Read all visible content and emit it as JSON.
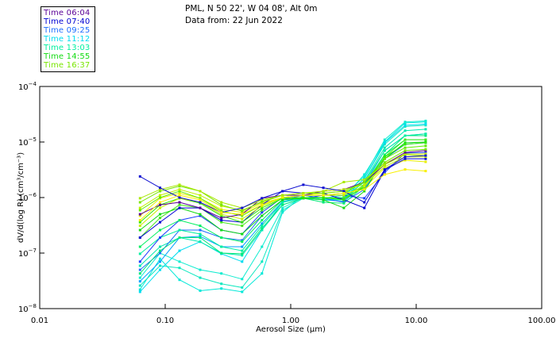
{
  "header": {
    "station": "PML, N 50 22', W 04 08', Alt 0m",
    "date_line": "Data from: 22 Jun 2022"
  },
  "legend": [
    {
      "label": "Time 06:04",
      "color": "#5a0096"
    },
    {
      "label": "Time 07:40",
      "color": "#0000d2"
    },
    {
      "label": "Time 09:25",
      "color": "#1e6eff"
    },
    {
      "label": "Time 11:12",
      "color": "#00dcf0"
    },
    {
      "label": "Time 13:03",
      "color": "#00f0a0"
    },
    {
      "label": "Time 14:55",
      "color": "#14dc14"
    },
    {
      "label": "Time 16:37",
      "color": "#78e600"
    }
  ],
  "chart_data": {
    "type": "line",
    "xscale": "log",
    "yscale": "log",
    "xlim": [
      0.01,
      100
    ],
    "ylim": [
      1e-08,
      0.0001
    ],
    "xlabel": "Aerosol Size (μm)",
    "ylabel": "dV/d(log R) (cm³/cm⁻³)",
    "xticks": [
      {
        "value": 0.01,
        "label": "0.01"
      },
      {
        "value": 0.1,
        "label": "0.10"
      },
      {
        "value": 1,
        "label": "1.00"
      },
      {
        "value": 10,
        "label": "10.00"
      },
      {
        "value": 100,
        "label": "100.00"
      }
    ],
    "yticks": [
      {
        "value": 0.0001,
        "base": "10",
        "exp": "−4"
      },
      {
        "value": 1e-05,
        "base": "10",
        "exp": "−5"
      },
      {
        "value": 1e-06,
        "base": "10",
        "exp": "−6"
      },
      {
        "value": 1e-07,
        "base": "10",
        "exp": "−7"
      },
      {
        "value": 1e-08,
        "base": "10",
        "exp": "−8"
      }
    ],
    "x": [
      0.063,
      0.091,
      0.13,
      0.19,
      0.28,
      0.41,
      0.59,
      0.86,
      1.26,
      1.82,
      2.65,
      3.86,
      5.61,
      8.16,
      11.9
    ],
    "series": [
      {
        "color": "#e8f000",
        "values": [
          4.7e-07,
          9.7e-07,
          1.2e-06,
          9.7e-07,
          6.1e-07,
          5.4e-07,
          7.9e-07,
          1e-06,
          1.1e-06,
          1.2e-06,
          1.3e-06,
          1.5e-06,
          3.4e-06,
          4.7e-06,
          4.4e-06
        ]
      },
      {
        "color": "#00e8d8",
        "values": [
          2.2e-08,
          7.9e-08,
          3.3e-08,
          2.1e-08,
          2.3e-08,
          2e-08,
          4.3e-08,
          5.4e-07,
          1.1e-06,
          9.7e-07,
          1e-06,
          2.6e-06,
          1e-05,
          2.2e-05,
          2.3e-05
        ]
      },
      {
        "color": "#10ecd0",
        "values": [
          3.6e-08,
          1e-07,
          7e-08,
          5e-08,
          4.3e-08,
          3.4e-08,
          1.3e-07,
          6.5e-07,
          1e-06,
          9.7e-07,
          1.1e-06,
          2.4e-06,
          1.1e-05,
          2.3e-05,
          2.4e-05
        ]
      },
      {
        "color": "#10e8c0",
        "values": [
          2.6e-08,
          5.9e-08,
          5.4e-08,
          3.6e-08,
          2.8e-08,
          2.4e-08,
          7e-08,
          5.9e-07,
          9.7e-07,
          9.1e-07,
          9.7e-07,
          2.2e-06,
          9.1e-06,
          1.9e-05,
          2e-05
        ]
      },
      {
        "color": "#00dcf0",
        "values": [
          2e-08,
          5e-08,
          1.1e-07,
          1.6e-07,
          9.7e-08,
          7e-08,
          2.6e-07,
          8.2e-07,
          9.7e-07,
          9.1e-07,
          9.7e-07,
          2.2e-06,
          9.7e-06,
          2e-05,
          2.1e-05
        ]
      },
      {
        "color": "#00a0ff",
        "values": [
          3.1e-08,
          7e-08,
          1.9e-07,
          2e-07,
          1.3e-07,
          1.3e-07,
          3.4e-07,
          8.5e-07,
          1e-06,
          9.1e-07,
          8.5e-07,
          1.7e-06,
          7e-06,
          1.3e-05,
          1.4e-05
        ]
      },
      {
        "color": "#00e8b0",
        "values": [
          5.9e-08,
          1.3e-07,
          1.9e-07,
          1.6e-07,
          1e-07,
          9.1e-08,
          2.6e-07,
          7.4e-07,
          9.7e-07,
          9.1e-07,
          9.1e-07,
          2e-06,
          7.9e-06,
          1.6e-05,
          1.7e-05
        ]
      },
      {
        "color": "#1e6eff",
        "values": [
          5e-08,
          1e-07,
          2.6e-07,
          2.6e-07,
          1.9e-07,
          1.7e-07,
          4.7e-07,
          9.1e-07,
          1.1e-06,
          9.7e-07,
          8.2e-07,
          1.4e-06,
          5e-06,
          9.1e-06,
          9.7e-06
        ]
      },
      {
        "color": "#00e878",
        "values": [
          4.3e-08,
          1.1e-07,
          1.9e-07,
          1.9e-07,
          1e-07,
          9.7e-08,
          2.8e-07,
          7.4e-07,
          9.7e-07,
          8.2e-07,
          7.9e-07,
          1.6e-06,
          5.9e-06,
          1.3e-05,
          1.3e-05
        ]
      },
      {
        "color": "#00f0a0",
        "values": [
          9.7e-08,
          1.9e-07,
          2.6e-07,
          2.2e-07,
          1.3e-07,
          1.1e-07,
          3.1e-07,
          8.2e-07,
          1e-06,
          9.7e-07,
          1e-06,
          1.9e-06,
          7e-06,
          1.3e-05,
          1.4e-05
        ]
      },
      {
        "color": "#1a3cff",
        "values": [
          7e-08,
          1.9e-07,
          3.9e-07,
          4.7e-07,
          2.6e-07,
          2.2e-07,
          5.4e-07,
          1e-06,
          9.7e-07,
          1.1e-06,
          1.1e-06,
          9.7e-07,
          2.8e-06,
          6.3e-06,
          6.5e-06
        ]
      },
      {
        "color": "#00f060",
        "values": [
          1.3e-07,
          2.6e-07,
          3.9e-07,
          3.1e-07,
          1.9e-07,
          1.6e-07,
          3.9e-07,
          9.1e-07,
          1e-06,
          9.7e-07,
          9.7e-07,
          1.7e-06,
          5.9e-06,
          1.1e-05,
          1.1e-05
        ]
      },
      {
        "color": "#48e820",
        "values": [
          1.9e-07,
          4.3e-07,
          7.4e-07,
          6.5e-07,
          3.6e-07,
          3.1e-07,
          5.9e-07,
          9.7e-07,
          1e-06,
          1e-06,
          9.7e-07,
          1.5e-06,
          5.4e-06,
          1.1e-05,
          1.1e-05
        ]
      },
      {
        "color": "#14dc14",
        "values": [
          2.6e-07,
          5e-07,
          6.5e-07,
          5e-07,
          2.6e-07,
          2.2e-07,
          4.7e-07,
          9.1e-07,
          9.7e-07,
          9.1e-07,
          6.5e-07,
          1.3e-06,
          5e-06,
          9.7e-06,
          1e-05
        ]
      },
      {
        "color": "#0000d2",
        "values": [
          1.9e-07,
          3.6e-07,
          6.5e-07,
          6.5e-07,
          3.9e-07,
          3.6e-07,
          7.4e-07,
          1.3e-06,
          1.2e-06,
          1.2e-06,
          9.1e-07,
          6.5e-07,
          3.1e-06,
          5e-06,
          5e-06
        ]
      },
      {
        "color": "#30e800",
        "values": [
          3.6e-07,
          7.4e-07,
          9.7e-07,
          7.9e-07,
          4.7e-07,
          3.6e-07,
          6.5e-07,
          9.7e-07,
          1e-06,
          1e-06,
          9.1e-07,
          1.6e-06,
          5.4e-06,
          9.1e-06,
          9.7e-06
        ]
      },
      {
        "color": "#c8f000",
        "values": [
          3.1e-07,
          6.5e-07,
          9.7e-07,
          8.2e-07,
          5e-07,
          4.1e-07,
          7e-07,
          1e-06,
          1.1e-06,
          1.1e-06,
          1.1e-06,
          1.6e-06,
          4.1e-06,
          6.1e-06,
          6.1e-06
        ]
      },
      {
        "color": "#60ec00",
        "values": [
          5.9e-07,
          1e-06,
          1.3e-06,
          9.7e-07,
          5.7e-07,
          4.7e-07,
          7.4e-07,
          1e-06,
          1.1e-06,
          1.1e-06,
          1.2e-06,
          1.9e-06,
          5e-06,
          7.9e-06,
          8.5e-06
        ]
      },
      {
        "color": "#5a0096",
        "values": [
          5e-07,
          7.4e-07,
          8.2e-07,
          6.5e-07,
          4.3e-07,
          5e-07,
          9.7e-07,
          1.1e-06,
          1.1e-06,
          1.3e-06,
          1.4e-06,
          1.9e-06,
          3.9e-06,
          6.5e-06,
          7e-06
        ]
      },
      {
        "color": "#c0f000",
        "values": [
          6.5e-07,
          1.1e-06,
          1.4e-06,
          1.1e-06,
          7e-07,
          5.9e-07,
          8.2e-07,
          1.1e-06,
          1.2e-06,
          1.3e-06,
          1.4e-06,
          1.7e-06,
          3.6e-06,
          5.4e-06,
          5.4e-06
        ]
      },
      {
        "color": "#78e600",
        "values": [
          8.2e-07,
          1.3e-06,
          1.6e-06,
          1.3e-06,
          7.4e-07,
          5.7e-07,
          8.5e-07,
          1.1e-06,
          1.2e-06,
          1.2e-06,
          1.3e-06,
          1.9e-06,
          4.3e-06,
          7e-06,
          7.4e-06
        ]
      },
      {
        "color": "#a8e800",
        "values": [
          9.7e-07,
          1.4e-06,
          1.7e-06,
          1.3e-06,
          8.2e-07,
          6.5e-07,
          9.1e-07,
          1.1e-06,
          1.2e-06,
          1.3e-06,
          1.9e-06,
          2.1e-06,
          3.9e-06,
          5.9e-06,
          5.7e-06
        ]
      },
      {
        "color": "#1010d0",
        "values": [
          2.4e-06,
          1.5e-06,
          1e-06,
          8.2e-07,
          5.4e-07,
          6.5e-07,
          9.7e-07,
          1.3e-06,
          1.7e-06,
          1.5e-06,
          1.3e-06,
          8.2e-07,
          3.2e-06,
          5.4e-06,
          5.7e-06
        ]
      },
      {
        "color": "#f8f000",
        "values": [
          3.9e-07,
          8.2e-07,
          1.1e-06,
          9.1e-07,
          5.4e-07,
          5e-07,
          7.4e-07,
          1e-06,
          1.1e-06,
          1.1e-06,
          1.2e-06,
          1.4e-06,
          2.6e-06,
          3.2e-06,
          3e-06
        ]
      }
    ]
  }
}
